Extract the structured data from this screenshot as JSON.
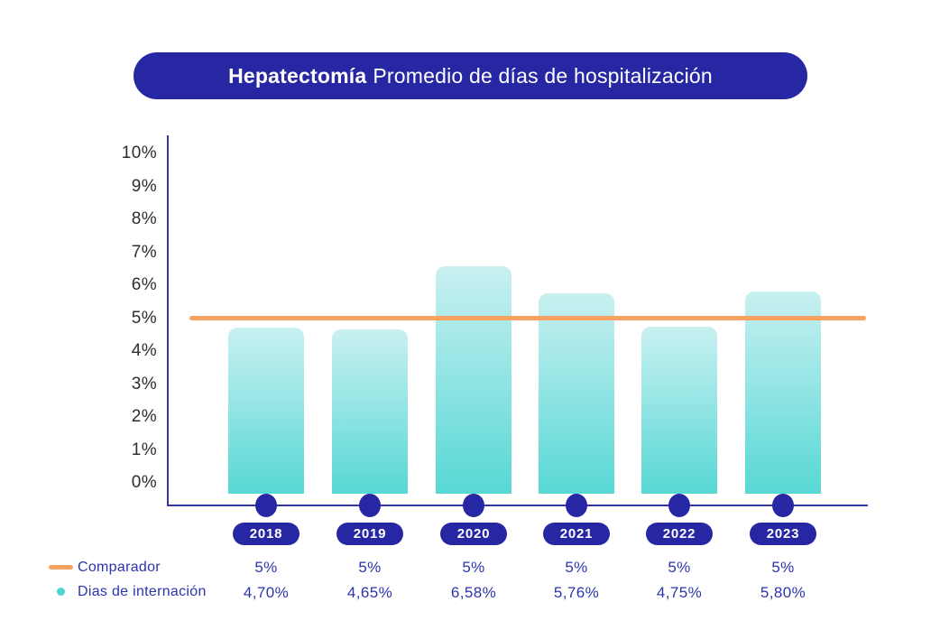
{
  "title": {
    "procedure": "Hepatectomía",
    "subtitle": "Promedio de días de hospitalización"
  },
  "chart_data": {
    "type": "bar",
    "title": "Hepatectomía Promedio de días de hospitalización",
    "categories": [
      "2018",
      "2019",
      "2020",
      "2021",
      "2022",
      "2023"
    ],
    "series": [
      {
        "name": "Comparador",
        "type": "line",
        "values": [
          5,
          5,
          5,
          5,
          5,
          5
        ],
        "labels": [
          "5%",
          "5%",
          "5%",
          "5%",
          "5%",
          "5%"
        ]
      },
      {
        "name": "Dias de internación",
        "type": "bar",
        "values": [
          4.7,
          4.65,
          6.58,
          5.76,
          4.75,
          5.8
        ],
        "labels": [
          "4,70%",
          "4,65%",
          "6,58%",
          "5,76%",
          "4,75%",
          "5,80%"
        ]
      }
    ],
    "comparator_value": 5,
    "ylim": [
      0,
      10
    ],
    "yticks": [
      "0%",
      "1%",
      "2%",
      "3%",
      "4%",
      "5%",
      "6%",
      "7%",
      "8%",
      "9%",
      "10%"
    ],
    "grid": false,
    "legend_position": "bottom-left"
  },
  "legend": [
    {
      "label": "Comparador",
      "swatch": "line"
    },
    {
      "label": "Dias de internación",
      "swatch": "dot"
    }
  ],
  "colors": {
    "navy": "#2727a3",
    "axis_blue": "#3434ad",
    "orange": "#f8a262",
    "bar_top": "#c9f0f1",
    "bar_bottom": "#57d8d5",
    "teal_dot": "#4ed5d3",
    "value_text": "#2b35ab",
    "tick_text": "#2d2d2d"
  }
}
